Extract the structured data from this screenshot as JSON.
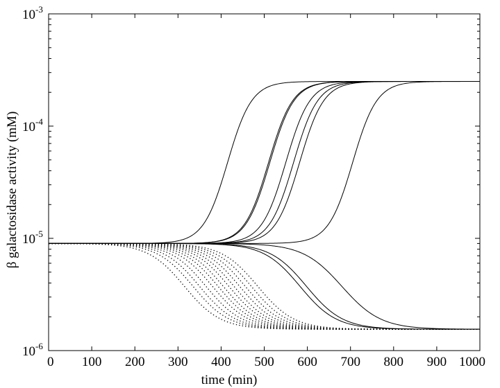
{
  "chart_data": {
    "type": "line",
    "xlabel": "time (min)",
    "ylabel": "β   galactosidase activity  (mM)",
    "xlim": [
      0,
      1000
    ],
    "ylim": [
      1e-06,
      0.001
    ],
    "yscale": "log",
    "grid": false,
    "legend": "none",
    "x_ticks": [
      "0",
      "100",
      "200",
      "300",
      "400",
      "500",
      "600",
      "700",
      "800",
      "900",
      "1000"
    ],
    "y_ticks": [
      {
        "base": "10",
        "exp": "-6",
        "value": 1e-06
      },
      {
        "base": "10",
        "exp": "-5",
        "value": 1e-05
      },
      {
        "base": "10",
        "exp": "-4",
        "value": 0.0001
      },
      {
        "base": "10",
        "exp": "-3",
        "value": 0.001
      }
    ],
    "initial_value": 9e-06,
    "high_steady_state": 0.00025,
    "low_steady_state": 1.55e-06,
    "series": [
      {
        "style": "solid",
        "direction": "up",
        "x_mid": 415,
        "width": 28
      },
      {
        "style": "solid",
        "direction": "up",
        "x_mid": 510,
        "width": 28
      },
      {
        "style": "solid",
        "direction": "up",
        "x_mid": 513,
        "width": 28
      },
      {
        "style": "solid",
        "direction": "up",
        "x_mid": 550,
        "width": 28
      },
      {
        "style": "solid",
        "direction": "up",
        "x_mid": 568,
        "width": 28
      },
      {
        "style": "solid",
        "direction": "up",
        "x_mid": 582,
        "width": 28
      },
      {
        "style": "solid",
        "direction": "up",
        "x_mid": 705,
        "width": 28
      },
      {
        "style": "solid",
        "direction": "down",
        "x_mid": 583,
        "width": 42
      },
      {
        "style": "solid",
        "direction": "down",
        "x_mid": 598,
        "width": 42
      },
      {
        "style": "solid",
        "direction": "down",
        "x_mid": 680,
        "width": 45
      },
      {
        "style": "dotted",
        "direction": "down",
        "x_mid": 315,
        "width": 42
      },
      {
        "style": "dotted",
        "direction": "down",
        "x_mid": 335,
        "width": 42
      },
      {
        "style": "dotted",
        "direction": "down",
        "x_mid": 350,
        "width": 42
      },
      {
        "style": "dotted",
        "direction": "down",
        "x_mid": 365,
        "width": 42
      },
      {
        "style": "dotted",
        "direction": "down",
        "x_mid": 380,
        "width": 42
      },
      {
        "style": "dotted",
        "direction": "down",
        "x_mid": 393,
        "width": 42
      },
      {
        "style": "dotted",
        "direction": "down",
        "x_mid": 405,
        "width": 42
      },
      {
        "style": "dotted",
        "direction": "down",
        "x_mid": 418,
        "width": 42
      },
      {
        "style": "dotted",
        "direction": "down",
        "x_mid": 430,
        "width": 42
      },
      {
        "style": "dotted",
        "direction": "down",
        "x_mid": 443,
        "width": 42
      },
      {
        "style": "dotted",
        "direction": "down",
        "x_mid": 456,
        "width": 42
      },
      {
        "style": "dotted",
        "direction": "down",
        "x_mid": 470,
        "width": 42
      },
      {
        "style": "dotted",
        "direction": "down",
        "x_mid": 485,
        "width": 42
      }
    ]
  }
}
